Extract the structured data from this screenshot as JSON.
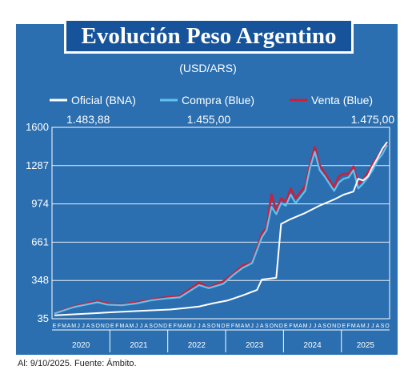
{
  "title": "Evolución Peso Argentino",
  "subtitle": "(USD/ARS)",
  "footnote": "Al: 9/10/2025. Fuente: Ámbito.",
  "colors": {
    "background": "#2b6fb0",
    "title_box": "#16539a",
    "oficial": "#ffffff",
    "compra": "#63c1ee",
    "venta": "#cc1f3a"
  },
  "chart_data": {
    "type": "line",
    "title": "Evolución Peso Argentino",
    "subtitle": "(USD/ARS)",
    "ylim": [
      35,
      1600
    ],
    "yticks": [
      35,
      348,
      661,
      974,
      1287,
      1600
    ],
    "grid": true,
    "legend_position": "top",
    "x_range": [
      "2020-01",
      "2025-10"
    ],
    "month_labels": [
      "E",
      "F",
      "M",
      "A",
      "M",
      "J",
      "J",
      "A",
      "S",
      "O",
      "N",
      "D",
      "E",
      "F",
      "M",
      "A",
      "M",
      "J",
      "J",
      "A",
      "S",
      "O",
      "N",
      "D",
      "E",
      "F",
      "M",
      "A",
      "M",
      "J",
      "J",
      "A",
      "S",
      "O",
      "N",
      "D",
      "E",
      "F",
      "M",
      "A",
      "M",
      "J",
      "J",
      "A",
      "S",
      "O",
      "N",
      "D",
      "E",
      "F",
      "M",
      "A",
      "M",
      "J",
      "J",
      "A",
      "S",
      "O",
      "N",
      "D",
      "E",
      "F",
      "M",
      "A",
      "M",
      "J",
      "J",
      "A",
      "S",
      "O"
    ],
    "year_labels": [
      "2020",
      "2021",
      "2022",
      "2023",
      "2024",
      "2025"
    ],
    "annotations": [
      {
        "text": "1.483,88",
        "x": "2020-08"
      },
      {
        "text": "1.455,00",
        "x": "2022-09"
      },
      {
        "text": "1.475,00",
        "x": "2025-07"
      }
    ],
    "series": [
      {
        "name": "Oficial (BNA)",
        "x": [
          "2020-01",
          "2020-07",
          "2021-01",
          "2021-07",
          "2022-01",
          "2022-04",
          "2022-07",
          "2022-10",
          "2023-01",
          "2023-04",
          "2023-07",
          "2023-08",
          "2023-11",
          "2023-12",
          "2024-02",
          "2024-05",
          "2024-08",
          "2024-11",
          "2025-01",
          "2025-03",
          "2025-04",
          "2025-05",
          "2025-06",
          "2025-07",
          "2025-08",
          "2025-09",
          "2025-10"
        ],
        "y": [
          63,
          75,
          88,
          100,
          110,
          122,
          135,
          162,
          185,
          225,
          270,
          355,
          370,
          810,
          850,
          900,
          960,
          1010,
          1050,
          1075,
          1180,
          1165,
          1200,
          1280,
          1350,
          1425,
          1480
        ]
      },
      {
        "name": "Compra (Blue)",
        "x": [
          "2020-01",
          "2020-05",
          "2020-10",
          "2020-12",
          "2021-03",
          "2021-06",
          "2021-09",
          "2021-12",
          "2022-03",
          "2022-07",
          "2022-09",
          "2022-12",
          "2023-02",
          "2023-04",
          "2023-06",
          "2023-08",
          "2023-09",
          "2023-10",
          "2023-11",
          "2023-12",
          "2024-01",
          "2024-02",
          "2024-03",
          "2024-05",
          "2024-06",
          "2024-07",
          "2024-08",
          "2024-09",
          "2024-10",
          "2024-11",
          "2024-12",
          "2025-01",
          "2025-02",
          "2025-03",
          "2025-04",
          "2025-05",
          "2025-06",
          "2025-07",
          "2025-08",
          "2025-09",
          "2025-10"
        ],
        "y": [
          78,
          130,
          170,
          150,
          145,
          160,
          185,
          200,
          210,
          310,
          285,
          320,
          390,
          450,
          490,
          700,
          760,
          950,
          890,
          980,
          960,
          1050,
          980,
          1080,
          1270,
          1400,
          1250,
          1200,
          1140,
          1080,
          1150,
          1180,
          1190,
          1250,
          1100,
          1140,
          1190,
          1250,
          1330,
          1380,
          1455
        ]
      },
      {
        "name": "Venta (Blue)",
        "x": [
          "2020-01",
          "2020-05",
          "2020-10",
          "2020-12",
          "2021-03",
          "2021-06",
          "2021-09",
          "2021-12",
          "2022-03",
          "2022-07",
          "2022-09",
          "2022-12",
          "2023-02",
          "2023-04",
          "2023-06",
          "2023-08",
          "2023-09",
          "2023-10",
          "2023-11",
          "2023-12",
          "2024-01",
          "2024-02",
          "2024-03",
          "2024-05",
          "2024-06",
          "2024-07",
          "2024-08",
          "2024-09",
          "2024-10",
          "2024-11",
          "2024-12",
          "2025-01",
          "2025-02",
          "2025-03",
          "2025-04",
          "2025-05",
          "2025-06",
          "2025-07",
          "2025-08",
          "2025-09",
          "2025-10"
        ],
        "y": [
          80,
          135,
          180,
          160,
          150,
          170,
          190,
          210,
          220,
          330,
          290,
          340,
          400,
          470,
          495,
          730,
          780,
          1050,
          920,
          1020,
          990,
          1100,
          1020,
          1120,
          1300,
          1440,
          1290,
          1230,
          1170,
          1110,
          1200,
          1220,
          1220,
          1280,
          1140,
          1170,
          1230,
          1300,
          1360,
          1420,
          1475
        ]
      }
    ]
  }
}
